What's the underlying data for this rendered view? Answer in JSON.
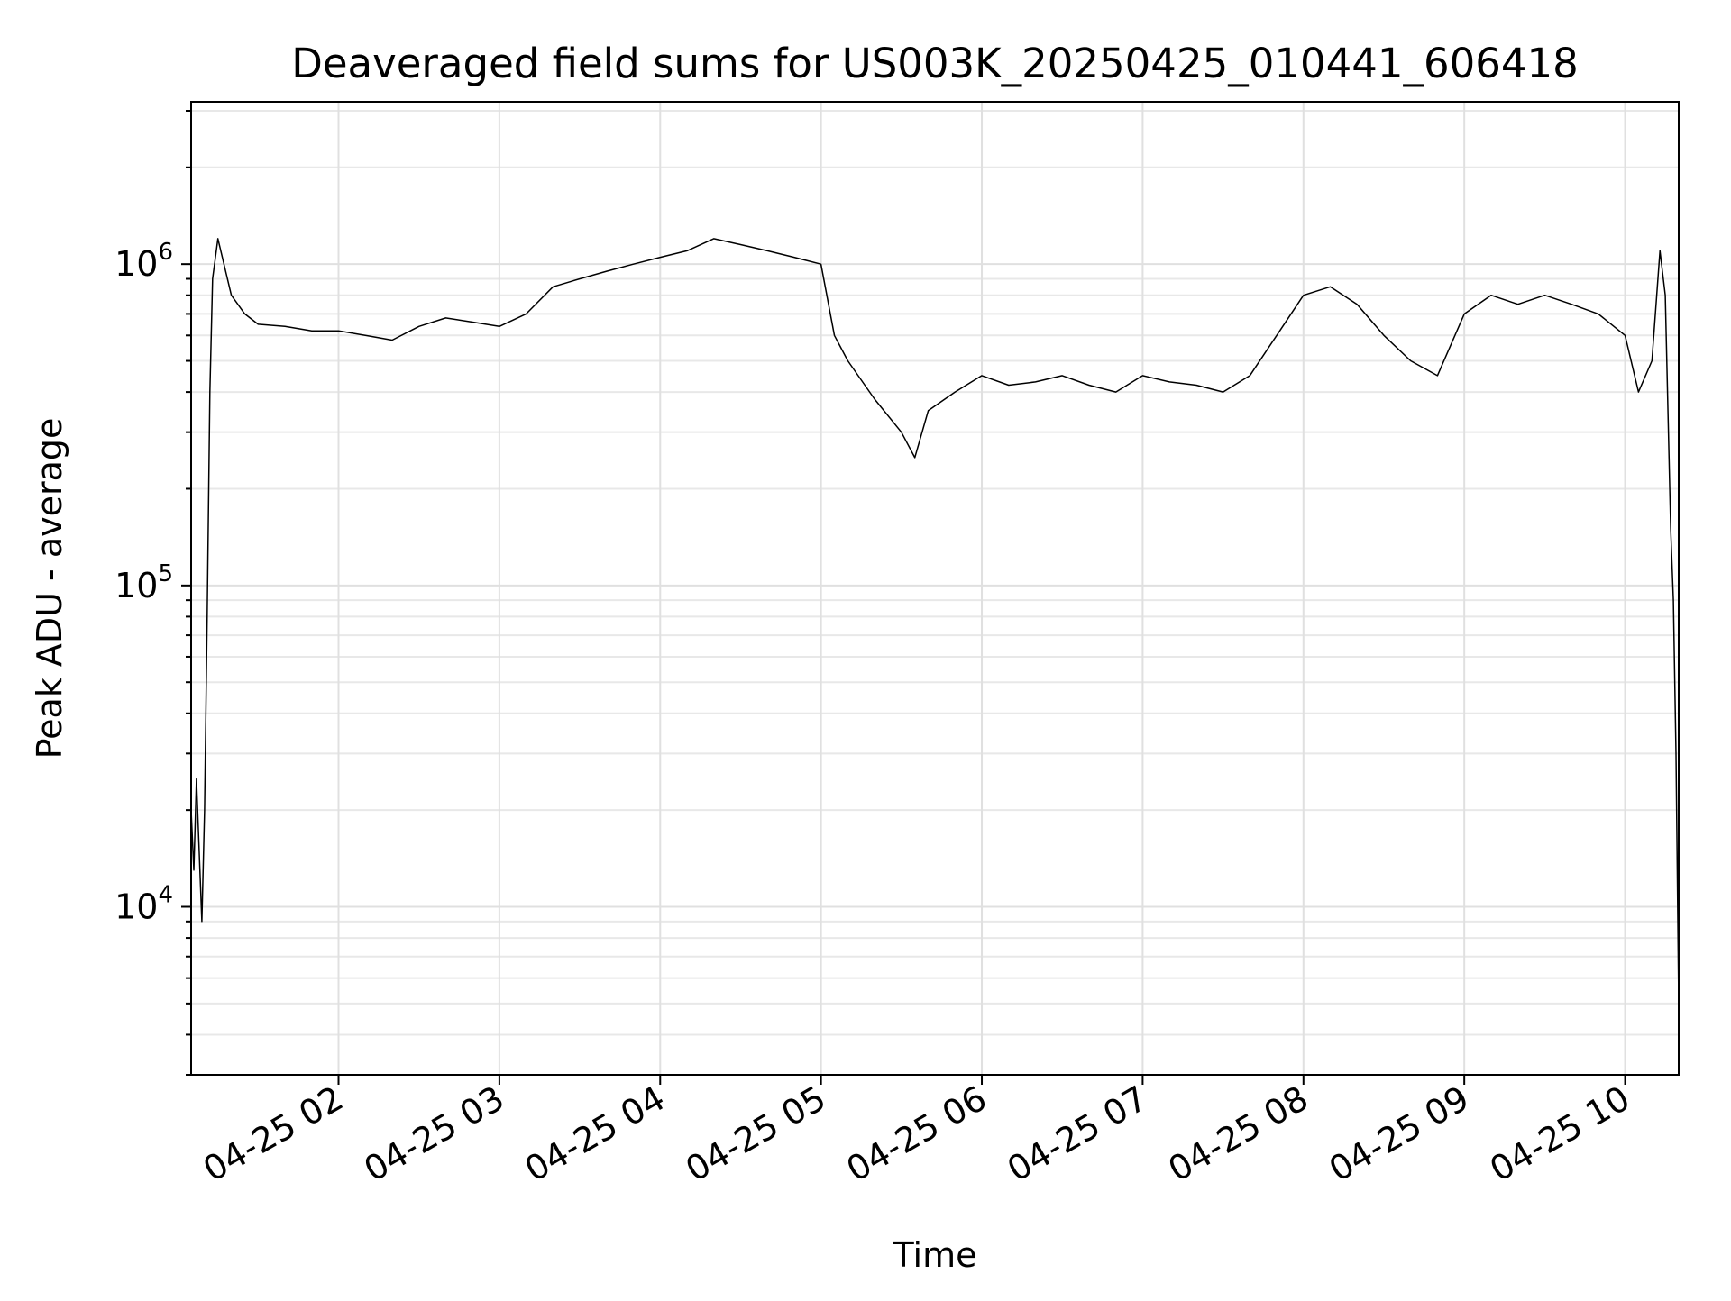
{
  "chart_data": {
    "type": "line",
    "title": "Deaveraged field sums for US003K_20250425_010441_606418",
    "xlabel": "Time",
    "ylabel": "Peak ADU - average",
    "yscale": "log",
    "ylim": [
      3000,
      3200000
    ],
    "xlim": [
      "2025-04-25 01:05",
      "2025-04-25 10:20"
    ],
    "grid": true,
    "line_color": "#000000",
    "x_ticks": [
      {
        "t": "2025-04-25 02:00",
        "label": "04-25 02"
      },
      {
        "t": "2025-04-25 03:00",
        "label": "04-25 03"
      },
      {
        "t": "2025-04-25 04:00",
        "label": "04-25 04"
      },
      {
        "t": "2025-04-25 05:00",
        "label": "04-25 05"
      },
      {
        "t": "2025-04-25 06:00",
        "label": "04-25 06"
      },
      {
        "t": "2025-04-25 07:00",
        "label": "04-25 07"
      },
      {
        "t": "2025-04-25 08:00",
        "label": "04-25 08"
      },
      {
        "t": "2025-04-25 09:00",
        "label": "04-25 09"
      },
      {
        "t": "2025-04-25 10:00",
        "label": "04-25 10"
      }
    ],
    "y_ticks": [
      {
        "value": 10000,
        "base": "10",
        "exp": "4"
      },
      {
        "value": 100000,
        "base": "10",
        "exp": "5"
      },
      {
        "value": 1000000,
        "base": "10",
        "exp": "6"
      }
    ],
    "series": [
      {
        "x": [
          "2025-04-25 01:05",
          "2025-04-25 01:06",
          "2025-04-25 01:07",
          "2025-04-25 01:08",
          "2025-04-25 01:09",
          "2025-04-25 01:10",
          "2025-04-25 01:11",
          "2025-04-25 01:12",
          "2025-04-25 01:13",
          "2025-04-25 01:15",
          "2025-04-25 01:20",
          "2025-04-25 01:25",
          "2025-04-25 01:30",
          "2025-04-25 01:40",
          "2025-04-25 01:50",
          "2025-04-25 02:00",
          "2025-04-25 02:10",
          "2025-04-25 02:20",
          "2025-04-25 02:30",
          "2025-04-25 02:40",
          "2025-04-25 02:50",
          "2025-04-25 03:00",
          "2025-04-25 03:10",
          "2025-04-25 03:20",
          "2025-04-25 03:30",
          "2025-04-25 03:40",
          "2025-04-25 03:50",
          "2025-04-25 04:00",
          "2025-04-25 04:10",
          "2025-04-25 04:20",
          "2025-04-25 04:30",
          "2025-04-25 04:40",
          "2025-04-25 04:50",
          "2025-04-25 05:00",
          "2025-04-25 05:05",
          "2025-04-25 05:10",
          "2025-04-25 05:20",
          "2025-04-25 05:30",
          "2025-04-25 05:35",
          "2025-04-25 05:40",
          "2025-04-25 05:50",
          "2025-04-25 06:00",
          "2025-04-25 06:10",
          "2025-04-25 06:20",
          "2025-04-25 06:30",
          "2025-04-25 06:40",
          "2025-04-25 06:50",
          "2025-04-25 07:00",
          "2025-04-25 07:10",
          "2025-04-25 07:20",
          "2025-04-25 07:30",
          "2025-04-25 07:40",
          "2025-04-25 07:50",
          "2025-04-25 08:00",
          "2025-04-25 08:10",
          "2025-04-25 08:20",
          "2025-04-25 08:30",
          "2025-04-25 08:40",
          "2025-04-25 08:50",
          "2025-04-25 09:00",
          "2025-04-25 09:10",
          "2025-04-25 09:20",
          "2025-04-25 09:30",
          "2025-04-25 09:40",
          "2025-04-25 09:50",
          "2025-04-25 10:00",
          "2025-04-25 10:05",
          "2025-04-25 10:10",
          "2025-04-25 10:13",
          "2025-04-25 10:15",
          "2025-04-25 10:17",
          "2025-04-25 10:18",
          "2025-04-25 10:19",
          "2025-04-25 10:20"
        ],
        "y": [
          20000,
          13000,
          25000,
          15000,
          9000,
          20000,
          80000,
          400000,
          900000,
          1200000,
          800000,
          700000,
          650000,
          640000,
          620000,
          620000,
          600000,
          580000,
          640000,
          680000,
          660000,
          640000,
          700000,
          850000,
          900000,
          950000,
          1000000,
          1050000,
          1100000,
          1200000,
          1150000,
          1100000,
          1050000,
          1000000,
          600000,
          500000,
          380000,
          300000,
          250000,
          350000,
          400000,
          450000,
          420000,
          430000,
          450000,
          420000,
          400000,
          450000,
          430000,
          420000,
          400000,
          450000,
          600000,
          800000,
          850000,
          750000,
          600000,
          500000,
          450000,
          700000,
          800000,
          750000,
          800000,
          750000,
          700000,
          600000,
          400000,
          500000,
          1100000,
          800000,
          150000,
          90000,
          30000,
          5000
        ]
      }
    ]
  }
}
